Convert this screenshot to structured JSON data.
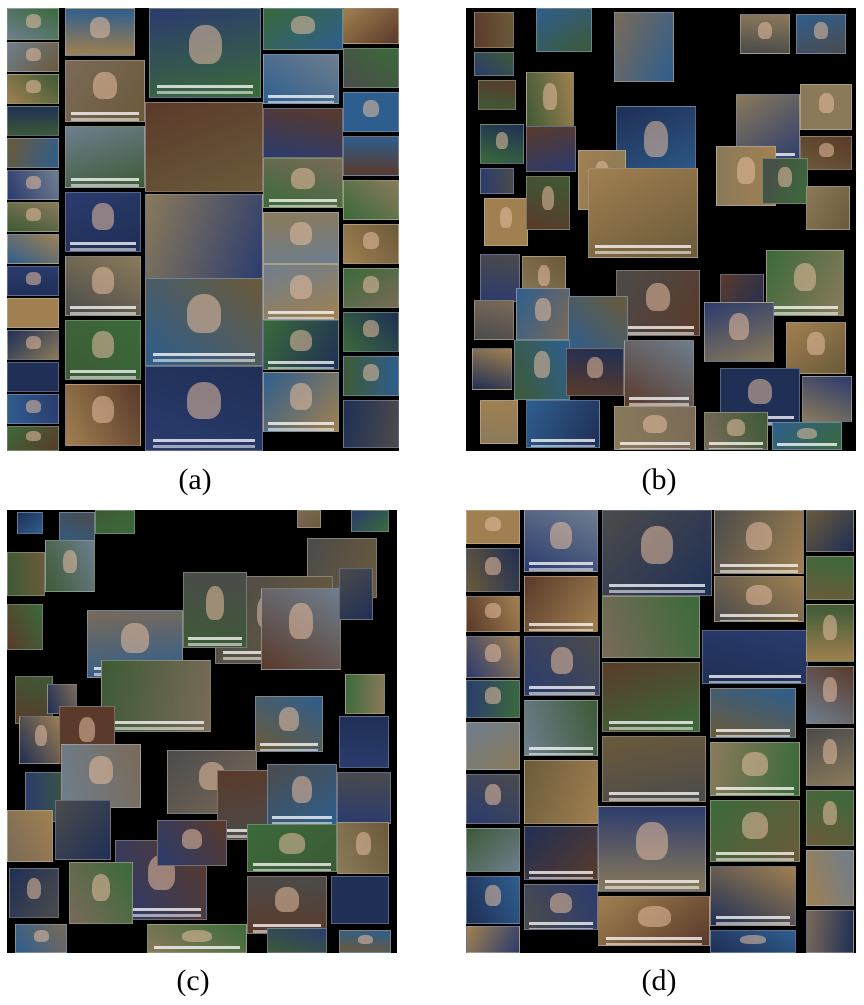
{
  "panels": [
    {
      "id": "a",
      "label": "(a)"
    },
    {
      "id": "b",
      "label": "(b)"
    },
    {
      "id": "c",
      "label": "(c)"
    },
    {
      "id": "d",
      "label": "(d)"
    }
  ],
  "colors": {
    "background": "#000000",
    "figure_background": "#ffffff",
    "tile_palette": [
      "#2b3b6e",
      "#6b5a3a",
      "#3d5a36",
      "#7a6a58",
      "#1f2f55",
      "#8a7a5a",
      "#4b4b4b",
      "#a08050",
      "#2e5e8e",
      "#5a3a2a",
      "#6e7e8e",
      "#3a6a3a"
    ]
  }
}
